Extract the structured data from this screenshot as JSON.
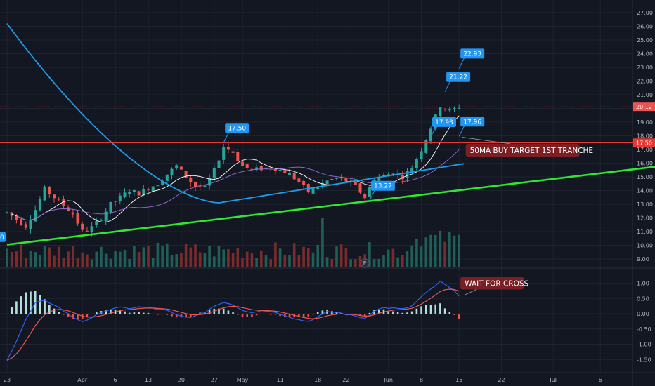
{
  "chart_data": {
    "type": "candlestick",
    "theme": {
      "background": "#131722",
      "grid": "#1f2330",
      "text": "#b2b5be",
      "up": "#26a69a",
      "down": "#ef5350",
      "blue": "#2196f3",
      "trendline": "#2ee82e",
      "level": "#e53935",
      "ma_long": "#1e9be8",
      "ma_fast": "#ffffff",
      "ma_mid": "#9c6bd6",
      "macd": "#2962ff",
      "signal": "#ef5350"
    },
    "price_axis": {
      "ticks": [
        "9.00",
        "10.00",
        "11.00",
        "12.00",
        "13.00",
        "14.00",
        "15.00",
        "16.00",
        "17.00",
        "18.00",
        "19.00",
        "20.00",
        "21.00",
        "22.00",
        "23.00",
        "24.00",
        "25.00",
        "26.00",
        "27.00"
      ],
      "ylim": [
        8.4,
        27.2
      ]
    },
    "macd_axis": {
      "ticks": [
        "1.00",
        "0.50",
        "0.00",
        "-0.50",
        "-1.00",
        "-1.50"
      ],
      "ylim": [
        -1.75,
        1.2
      ]
    },
    "time_axis": {
      "labels": [
        "23",
        "Apr",
        "6",
        "13",
        "20",
        "27",
        "May",
        "11",
        "18",
        "22",
        "Jun",
        "8",
        "15",
        "22",
        "Jul",
        "6"
      ],
      "bar_index": [
        0,
        16,
        23,
        30,
        37,
        44,
        50,
        58,
        66,
        72,
        81,
        88,
        96,
        105,
        116,
        126
      ]
    },
    "last_price": "20.12",
    "level_price": "17.50",
    "horizontal_level": 17.5,
    "trendline": {
      "start": [
        0,
        10.05
      ],
      "end": [
        139,
        15.8
      ]
    },
    "volume_spikes": [
      {
        "bar": 67,
        "value": 1.0
      }
    ],
    "callouts": [
      {
        "label": "17.50",
        "bar": 46,
        "price": 17.5
      },
      {
        "label": "13.27",
        "bar": 77,
        "price": 13.27
      },
      {
        "label": "17.93",
        "bar": 90,
        "price": 17.93
      },
      {
        "label": "17.96",
        "bar": 96,
        "price": 17.96
      },
      {
        "label": "21.22",
        "bar": 93,
        "price": 21.22
      },
      {
        "label": "22.93",
        "bar": 96,
        "price": 22.93
      }
    ],
    "notes": [
      {
        "label": "50MA BUY TARGET 1ST TRANCHE"
      },
      {
        "label": "WAIT FOR CROSS"
      }
    ],
    "event_marker": "E",
    "partial_label": "0",
    "price_keypoints": [
      [
        0,
        12.4
      ],
      [
        4,
        11.4
      ],
      [
        6,
        12.6
      ],
      [
        8,
        14.1
      ],
      [
        10,
        13.5
      ],
      [
        12,
        12.9
      ],
      [
        14,
        12.3
      ],
      [
        16,
        11.0
      ],
      [
        18,
        11.3
      ],
      [
        20,
        12.0
      ],
      [
        22,
        13.0
      ],
      [
        24,
        13.5
      ],
      [
        26,
        14.0
      ],
      [
        28,
        13.8
      ],
      [
        30,
        14.2
      ],
      [
        32,
        14.5
      ],
      [
        34,
        15.2
      ],
      [
        36,
        15.8
      ],
      [
        38,
        15.0
      ],
      [
        40,
        14.3
      ],
      [
        42,
        14.2
      ],
      [
        44,
        15.5
      ],
      [
        46,
        17.2
      ],
      [
        48,
        16.8
      ],
      [
        50,
        15.8
      ],
      [
        52,
        15.5
      ],
      [
        54,
        15.6
      ],
      [
        56,
        15.7
      ],
      [
        58,
        15.5
      ],
      [
        60,
        15.2
      ],
      [
        62,
        14.6
      ],
      [
        64,
        13.9
      ],
      [
        66,
        14.3
      ],
      [
        68,
        14.7
      ],
      [
        70,
        14.9
      ],
      [
        72,
        14.7
      ],
      [
        74,
        14.3
      ],
      [
        76,
        13.5
      ],
      [
        78,
        14.9
      ],
      [
        80,
        15.1
      ],
      [
        82,
        15.3
      ],
      [
        84,
        15.0
      ],
      [
        86,
        15.7
      ],
      [
        88,
        17.0
      ],
      [
        90,
        18.6
      ],
      [
        92,
        20.2
      ],
      [
        94,
        19.8
      ],
      [
        96,
        20.12
      ]
    ],
    "macd_keypoints": [
      [
        0,
        -1.5
      ],
      [
        2,
        -0.9
      ],
      [
        4,
        -0.2
      ],
      [
        6,
        0.35
      ],
      [
        8,
        0.42
      ],
      [
        10,
        0.3
      ],
      [
        12,
        0.1
      ],
      [
        14,
        -0.12
      ],
      [
        16,
        -0.25
      ],
      [
        18,
        -0.15
      ],
      [
        20,
        0.05
      ],
      [
        22,
        0.15
      ],
      [
        24,
        0.2
      ],
      [
        26,
        0.18
      ],
      [
        28,
        0.22
      ],
      [
        30,
        0.2
      ],
      [
        32,
        0.15
      ],
      [
        34,
        0.1
      ],
      [
        36,
        -0.05
      ],
      [
        38,
        -0.12
      ],
      [
        40,
        -0.08
      ],
      [
        42,
        0.05
      ],
      [
        44,
        0.25
      ],
      [
        46,
        0.38
      ],
      [
        48,
        0.3
      ],
      [
        50,
        0.12
      ],
      [
        52,
        0.05
      ],
      [
        54,
        0.1
      ],
      [
        56,
        0.08
      ],
      [
        58,
        0.0
      ],
      [
        60,
        -0.1
      ],
      [
        62,
        -0.2
      ],
      [
        64,
        -0.25
      ],
      [
        66,
        -0.1
      ],
      [
        68,
        0.05
      ],
      [
        70,
        0.05
      ],
      [
        72,
        -0.02
      ],
      [
        74,
        -0.08
      ],
      [
        76,
        -0.15
      ],
      [
        78,
        0.1
      ],
      [
        80,
        0.2
      ],
      [
        82,
        0.18
      ],
      [
        84,
        0.15
      ],
      [
        86,
        0.25
      ],
      [
        88,
        0.55
      ],
      [
        90,
        0.8
      ],
      [
        92,
        1.05
      ],
      [
        94,
        0.85
      ],
      [
        96,
        0.6
      ]
    ]
  }
}
